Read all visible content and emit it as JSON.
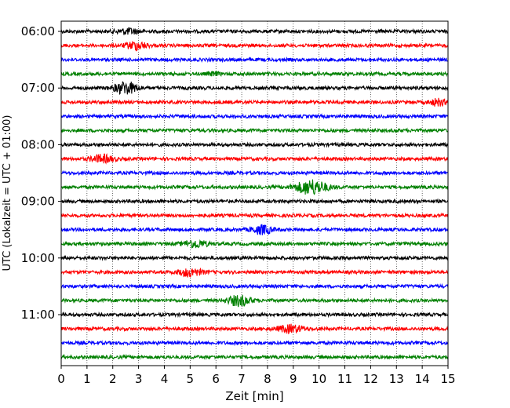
{
  "chart_data": {
    "type": "line",
    "title": "",
    "xlabel": "Zeit  [min]",
    "ylabel": "UTC (Lokalzeit = UTC + 01:00)",
    "xlim": [
      0,
      15
    ],
    "x_ticks": [
      "0",
      "1",
      "2",
      "3",
      "4",
      "5",
      "6",
      "7",
      "8",
      "9",
      "10",
      "11",
      "12",
      "13",
      "14",
      "15"
    ],
    "y_ticks": [
      "06:00",
      "07:00",
      "08:00",
      "09:00",
      "10:00",
      "11:00"
    ],
    "x_grid": "dotted vertical lines at each minute",
    "trace_interval_minutes": 15,
    "color_cycle": [
      "#000000",
      "#ff0000",
      "#0000ff",
      "#008000"
    ],
    "series": [
      {
        "start": "06:00",
        "color": "#000000",
        "events": [
          {
            "t": 2.6,
            "amp": 0.35,
            "dur": 0.9
          }
        ]
      },
      {
        "start": "06:15",
        "color": "#ff0000",
        "events": [
          {
            "t": 2.9,
            "amp": 0.55,
            "dur": 0.8
          }
        ]
      },
      {
        "start": "06:30",
        "color": "#0000ff",
        "events": []
      },
      {
        "start": "06:45",
        "color": "#008000",
        "events": [
          {
            "t": 5.9,
            "amp": 0.2,
            "dur": 0.5
          }
        ]
      },
      {
        "start": "07:00",
        "color": "#000000",
        "events": [
          {
            "t": 2.5,
            "amp": 0.85,
            "dur": 0.9
          }
        ]
      },
      {
        "start": "07:15",
        "color": "#ff0000",
        "events": [
          {
            "t": 14.6,
            "amp": 0.45,
            "dur": 0.6
          }
        ]
      },
      {
        "start": "07:30",
        "color": "#0000ff",
        "events": []
      },
      {
        "start": "07:45",
        "color": "#008000",
        "events": []
      },
      {
        "start": "08:00",
        "color": "#000000",
        "events": []
      },
      {
        "start": "08:15",
        "color": "#ff0000",
        "events": [
          {
            "t": 1.6,
            "amp": 0.5,
            "dur": 0.9
          }
        ]
      },
      {
        "start": "08:30",
        "color": "#0000ff",
        "events": []
      },
      {
        "start": "08:45",
        "color": "#008000",
        "events": [
          {
            "t": 9.7,
            "amp": 1.0,
            "dur": 1.2
          }
        ]
      },
      {
        "start": "09:00",
        "color": "#000000",
        "events": []
      },
      {
        "start": "09:15",
        "color": "#ff0000",
        "events": []
      },
      {
        "start": "09:30",
        "color": "#0000ff",
        "events": [
          {
            "t": 7.8,
            "amp": 0.6,
            "dur": 0.8
          }
        ]
      },
      {
        "start": "09:45",
        "color": "#008000",
        "events": [
          {
            "t": 5.2,
            "amp": 0.5,
            "dur": 0.9
          }
        ]
      },
      {
        "start": "10:00",
        "color": "#000000",
        "events": []
      },
      {
        "start": "10:15",
        "color": "#ff0000",
        "events": [
          {
            "t": 5.0,
            "amp": 0.55,
            "dur": 0.9
          }
        ]
      },
      {
        "start": "10:30",
        "color": "#0000ff",
        "events": []
      },
      {
        "start": "10:45",
        "color": "#008000",
        "events": [
          {
            "t": 6.9,
            "amp": 0.7,
            "dur": 0.9
          }
        ]
      },
      {
        "start": "11:00",
        "color": "#000000",
        "events": []
      },
      {
        "start": "11:15",
        "color": "#ff0000",
        "events": [
          {
            "t": 8.9,
            "amp": 0.5,
            "dur": 1.0
          }
        ]
      },
      {
        "start": "11:30",
        "color": "#0000ff",
        "events": []
      },
      {
        "start": "11:45",
        "color": "#008000",
        "events": []
      }
    ]
  }
}
